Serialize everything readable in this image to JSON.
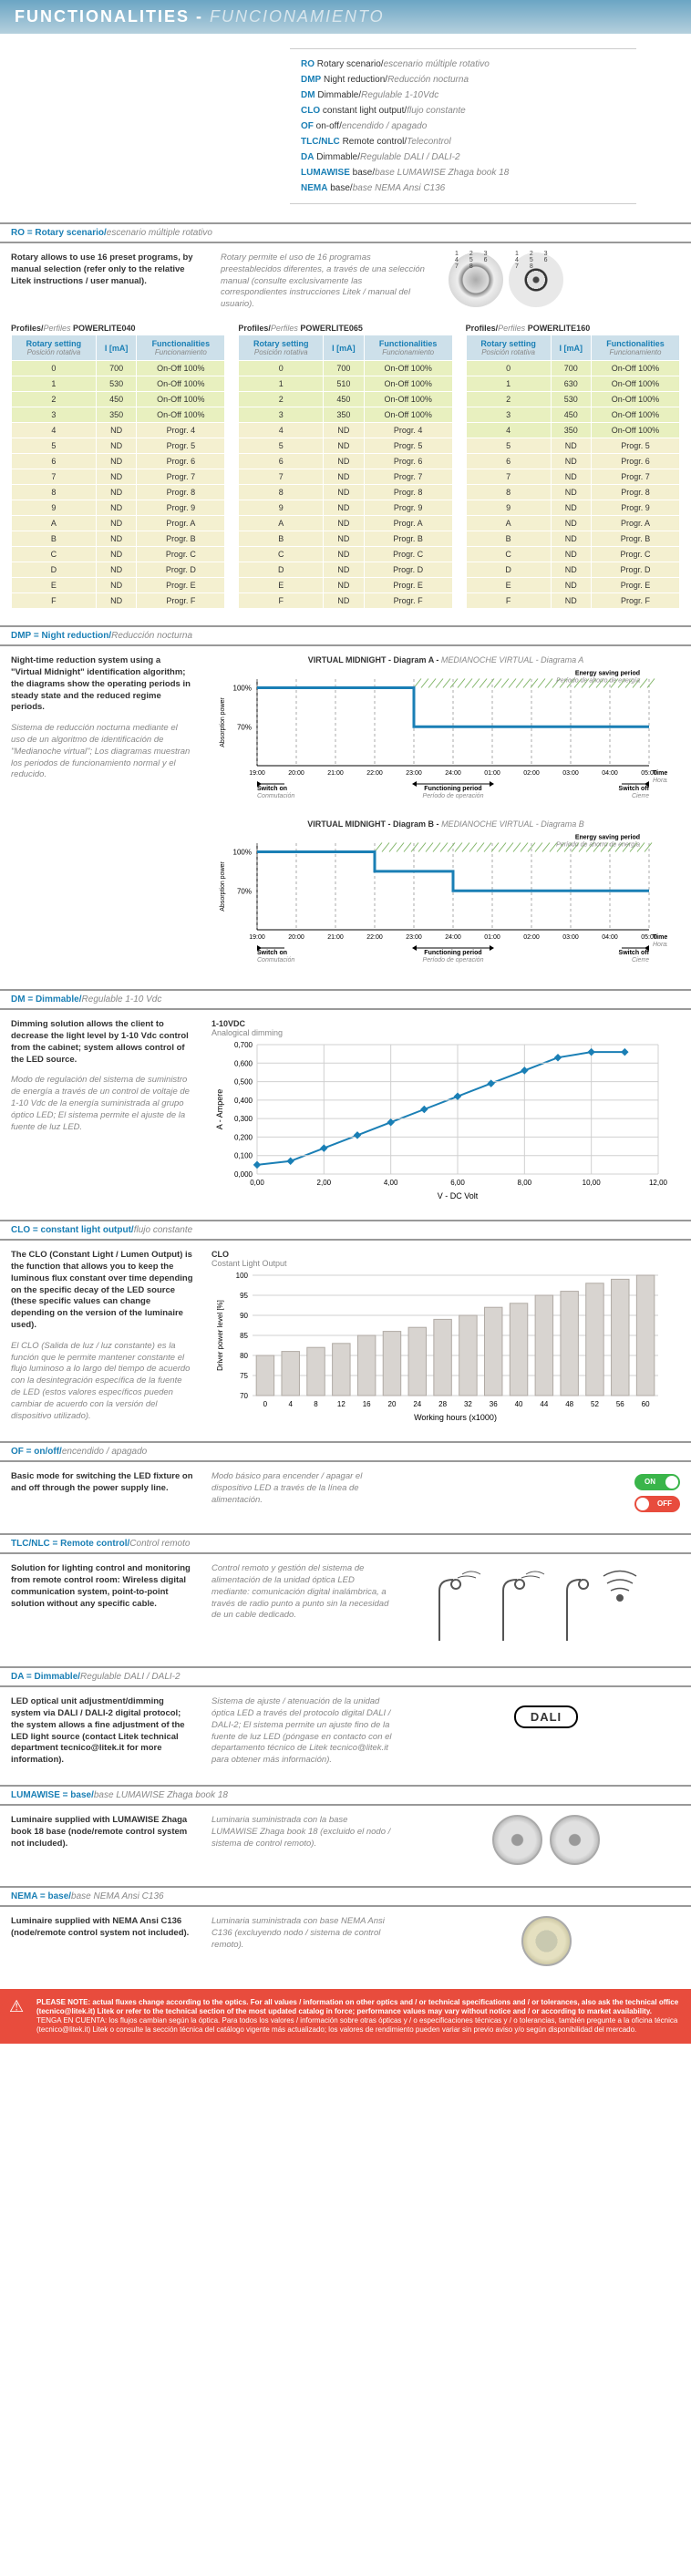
{
  "header": {
    "title": "FUNCTIONALITIES",
    "sep": " - ",
    "title_es": "FUNCIONAMIENTO",
    "bg_start": "#6ba5c4",
    "bg_end": "#b5d0dd"
  },
  "legend": [
    {
      "code": "RO",
      "en": "Rotary scenario/",
      "es": "escenario múltiple rotativo"
    },
    {
      "code": "DMP",
      "en": "Night reduction/",
      "es": "Reducción nocturna"
    },
    {
      "code": "DM",
      "en": "Dimmable/",
      "es": "Regulable 1-10Vdc"
    },
    {
      "code": "CLO",
      "en": "constant light output/",
      "es": "flujo constante"
    },
    {
      "code": "OF",
      "en": "on-off/",
      "es": "encendido / apagado"
    },
    {
      "code": "TLC/NLC",
      "en": "Remote control/",
      "es": "Telecontrol"
    },
    {
      "code": "DA",
      "en": "Dimmable/",
      "es": "Regulable DALI / DALI-2"
    },
    {
      "code": "LUMAWISE",
      "en": "base/",
      "es": "base LUMAWISE Zhaga book 18"
    },
    {
      "code": "NEMA",
      "en": "base/",
      "es": "base NEMA Ansi C136"
    }
  ],
  "accent": "#1a7fb5",
  "muted": "#888888",
  "row_on_bg": "#e8f0bf",
  "row_prog_bg": "#f4f0d0",
  "th_bg": "#cde0ea",
  "ro": {
    "head_en": "RO = Rotary scenario/",
    "head_es": "escenario múltiple rotativo",
    "intro_en": "Rotary allows to use 16 preset programs, by manual selection (refer only to the relative Litek instructions / user manual).",
    "intro_es": "Rotary permite el uso de 16 programas preestablecidos diferentes, a través de una selección manual (consulte exclusivamente las correspondientes instrucciones Litek / manual del usuario).",
    "col_hdr": {
      "rot_en": "Rotary setting",
      "rot_es": "Posición rotativa",
      "i": "I [mA]",
      "func_en": "Functionalities",
      "func_es": "Funcionamiento"
    },
    "profiles": [
      {
        "title_en": "Profiles/",
        "title_es": "Perfiles ",
        "name": "POWERLITE040",
        "rows": [
          {
            "r": "0",
            "i": "700",
            "f": "On-Off 100%",
            "on": true
          },
          {
            "r": "1",
            "i": "530",
            "f": "On-Off 100%",
            "on": true
          },
          {
            "r": "2",
            "i": "450",
            "f": "On-Off 100%",
            "on": true
          },
          {
            "r": "3",
            "i": "350",
            "f": "On-Off 100%",
            "on": true
          },
          {
            "r": "4",
            "i": "ND",
            "f": "Progr. 4"
          },
          {
            "r": "5",
            "i": "ND",
            "f": "Progr. 5"
          },
          {
            "r": "6",
            "i": "ND",
            "f": "Progr. 6"
          },
          {
            "r": "7",
            "i": "ND",
            "f": "Progr. 7"
          },
          {
            "r": "8",
            "i": "ND",
            "f": "Progr. 8"
          },
          {
            "r": "9",
            "i": "ND",
            "f": "Progr. 9"
          },
          {
            "r": "A",
            "i": "ND",
            "f": "Progr. A"
          },
          {
            "r": "B",
            "i": "ND",
            "f": "Progr. B"
          },
          {
            "r": "C",
            "i": "ND",
            "f": "Progr. C"
          },
          {
            "r": "D",
            "i": "ND",
            "f": "Progr. D"
          },
          {
            "r": "E",
            "i": "ND",
            "f": "Progr. E"
          },
          {
            "r": "F",
            "i": "ND",
            "f": "Progr. F"
          }
        ]
      },
      {
        "title_en": "Profiles/",
        "title_es": "Perfiles ",
        "name": "POWERLITE065",
        "rows": [
          {
            "r": "0",
            "i": "700",
            "f": "On-Off 100%",
            "on": true
          },
          {
            "r": "1",
            "i": "510",
            "f": "On-Off 100%",
            "on": true
          },
          {
            "r": "2",
            "i": "450",
            "f": "On-Off 100%",
            "on": true
          },
          {
            "r": "3",
            "i": "350",
            "f": "On-Off 100%",
            "on": true
          },
          {
            "r": "4",
            "i": "ND",
            "f": "Progr. 4"
          },
          {
            "r": "5",
            "i": "ND",
            "f": "Progr. 5"
          },
          {
            "r": "6",
            "i": "ND",
            "f": "Progr. 6"
          },
          {
            "r": "7",
            "i": "ND",
            "f": "Progr. 7"
          },
          {
            "r": "8",
            "i": "ND",
            "f": "Progr. 8"
          },
          {
            "r": "9",
            "i": "ND",
            "f": "Progr. 9"
          },
          {
            "r": "A",
            "i": "ND",
            "f": "Progr. A"
          },
          {
            "r": "B",
            "i": "ND",
            "f": "Progr. B"
          },
          {
            "r": "C",
            "i": "ND",
            "f": "Progr. C"
          },
          {
            "r": "D",
            "i": "ND",
            "f": "Progr. D"
          },
          {
            "r": "E",
            "i": "ND",
            "f": "Progr. E"
          },
          {
            "r": "F",
            "i": "ND",
            "f": "Progr. F"
          }
        ]
      },
      {
        "title_en": "Profiles/",
        "title_es": "Perfiles ",
        "name": "POWERLITE160",
        "rows": [
          {
            "r": "0",
            "i": "700",
            "f": "On-Off 100%",
            "on": true
          },
          {
            "r": "1",
            "i": "630",
            "f": "On-Off 100%",
            "on": true
          },
          {
            "r": "2",
            "i": "530",
            "f": "On-Off 100%",
            "on": true
          },
          {
            "r": "3",
            "i": "450",
            "f": "On-Off 100%",
            "on": true
          },
          {
            "r": "4",
            "i": "350",
            "f": "On-Off 100%",
            "on": true
          },
          {
            "r": "5",
            "i": "ND",
            "f": "Progr. 5"
          },
          {
            "r": "6",
            "i": "ND",
            "f": "Progr. 6"
          },
          {
            "r": "7",
            "i": "ND",
            "f": "Progr. 7"
          },
          {
            "r": "8",
            "i": "ND",
            "f": "Progr. 8"
          },
          {
            "r": "9",
            "i": "ND",
            "f": "Progr. 9"
          },
          {
            "r": "A",
            "i": "ND",
            "f": "Progr. A"
          },
          {
            "r": "B",
            "i": "ND",
            "f": "Progr. B"
          },
          {
            "r": "C",
            "i": "ND",
            "f": "Progr. C"
          },
          {
            "r": "D",
            "i": "ND",
            "f": "Progr. D"
          },
          {
            "r": "E",
            "i": "ND",
            "f": "Progr. E"
          },
          {
            "r": "F",
            "i": "ND",
            "f": "Progr. F"
          }
        ]
      }
    ]
  },
  "dmp": {
    "head_en": "DMP = Night reduction/",
    "head_es": "Reducción nocturna",
    "text_en": "Night-time reduction system using a \"Virtual Midnight\" identification algorithm; the diagrams show the operating periods in steady state and the reduced regime periods.",
    "text_es": "Sistema de reducción nocturna mediante el uso de un algoritmo de identificación de \"Medianoche virtual\"; Los diagramas muestran los periodos de funcionamiento normal y el reducido.",
    "diagA_title_en": "VIRTUAL MIDNIGHT - Diagram A - ",
    "diagA_title_es": "MEDIANOCHE VIRTUAL - Diagrama A",
    "diagB_title_en": "VIRTUAL MIDNIGHT - Diagram B - ",
    "diagB_title_es": "MEDIANOCHE VIRTUAL - Diagrama B",
    "y_label_en": "Absorption power",
    "y_label_es": "Potencia absorbida",
    "y_ticks": [
      "100%",
      "70%"
    ],
    "x_ticks": [
      "19:00",
      "20:00",
      "21:00",
      "22:00",
      "23:00",
      "24:00",
      "01:00",
      "02:00",
      "03:00",
      "04:00",
      "05:00"
    ],
    "x_label_time_en": "Time",
    "x_label_time_es": "Horas",
    "labels": {
      "switch_on_en": "Switch on",
      "switch_on_es": "Conmutación",
      "func_en": "Functioning period",
      "func_es": "Período de operación",
      "switch_off_en": "Switch off",
      "switch_off_es": "Cierre",
      "save_en": "Energy saving period",
      "save_es": "Período de ahorro de energía"
    },
    "diagA": {
      "step_at": "23:00",
      "pre_level": 100,
      "post_level": 70
    },
    "diagB": {
      "pre_level": 100,
      "step1_at": "22:00",
      "mid_level": 85,
      "step2_at": "24:00",
      "post_level": 70
    },
    "line_color": "#1a7fb5",
    "line_width": 3,
    "hatch_color": "#7fb566",
    "dash": "4,4"
  },
  "dm": {
    "head_en": "DM = Dimmable/",
    "head_es": "Regulable 1-10 Vdc",
    "text_en": "Dimming solution allows the client to decrease the light level by 1-10 Vdc control from the cabinet; system allows control of the LED source.",
    "text_es": "Modo de regulación del sistema de suministro de energía a través de un control de voltaje de 1-10 Vdc de la energía suministrada al grupo óptico LED; El sistema permite el ajuste de la fuente de luz LED.",
    "chart": {
      "title": "1-10VDC",
      "subtitle": "Analogical dimming",
      "xlabel": "V - DC Volt",
      "ylabel": "A - Ampere",
      "x_ticks": [
        "0,00",
        "2,00",
        "4,00",
        "6,00",
        "8,00",
        "10,00",
        "12,00"
      ],
      "y_ticks": [
        "0,000",
        "0,100",
        "0,200",
        "0,300",
        "0,400",
        "0,500",
        "0,600",
        "0,700"
      ],
      "points": [
        [
          0,
          0.05
        ],
        [
          1,
          0.07
        ],
        [
          2,
          0.14
        ],
        [
          3,
          0.21
        ],
        [
          4,
          0.28
        ],
        [
          5,
          0.35
        ],
        [
          6,
          0.42
        ],
        [
          7,
          0.49
        ],
        [
          8,
          0.56
        ],
        [
          9,
          0.63
        ],
        [
          10,
          0.66
        ],
        [
          11,
          0.66
        ]
      ],
      "xlim": [
        0,
        12
      ],
      "ylim": [
        0,
        0.7
      ],
      "line_color": "#1a7fb5",
      "line_width": 2,
      "marker": "diamond",
      "marker_size": 5,
      "grid_color": "#d0d0d0",
      "bg": "#ffffff"
    }
  },
  "clo": {
    "head_en": "CLO = constant light output/",
    "head_es": "flujo constante",
    "text_en": "The CLO (Constant Light / Lumen Output) is the function that allows you to keep the luminous flux constant over time depending on the specific decay of the LED source (these specific values can change depending on the version of the luminaire used).",
    "text_es": "El CLO (Salida de luz / luz constante) es la función que le permite mantener constante el flujo luminoso a lo largo del tiempo de acuerdo con la desintegración específica de la fuente de LED (estos valores específicos pueden cambiar de acuerdo con la versión del dispositivo utilizado).",
    "chart": {
      "title": "CLO",
      "subtitle": "Costant Light Output",
      "xlabel": "Working hours (x1000)",
      "ylabel": "Driver power level [%]",
      "x_ticks": [
        "0",
        "4",
        "8",
        "12",
        "16",
        "20",
        "24",
        "28",
        "32",
        "36",
        "40",
        "44",
        "48",
        "52",
        "56",
        "60"
      ],
      "y_ticks": [
        "70",
        "75",
        "80",
        "85",
        "90",
        "95",
        "100"
      ],
      "bars": [
        80,
        81,
        82,
        83,
        85,
        86,
        87,
        89,
        90,
        92,
        93,
        95,
        96,
        98,
        99,
        100
      ],
      "ylim": [
        70,
        100
      ],
      "bar_color": "#d8d4d0",
      "bar_border": "#b0aaa4",
      "grid_color": "#d0d0d0",
      "bg": "#ffffff"
    }
  },
  "of": {
    "head_en": "OF = on/off/",
    "head_es": "encendido / apagado",
    "text_en": "Basic mode for switching the LED fixture on and off through the power supply line.",
    "text_es": "Modo básico para encender / apagar el dispositivo LED a través de la línea de alimentación.",
    "on_label": "ON",
    "off_label": "OFF",
    "on_color": "#3ab54a",
    "off_color": "#e84c3d"
  },
  "tlc": {
    "head_en": "TLC/NLC = Remote control/",
    "head_es": "Control remoto",
    "text_en": "Solution for lighting control and monitoring from remote control room: Wireless digital communication system, point-to-point solution without any specific cable.",
    "text_es": "Control remoto y gestión del sistema de alimentación de la unidad óptica LED mediante: comunicación digital inalámbrica, a través de radio punto a punto sin la necesidad de un cable dedicado."
  },
  "da": {
    "head_en": "DA = Dimmable/",
    "head_es": "Regulable DALI / DALI-2",
    "text_en": "LED optical unit adjustment/dimming system via DALI / DALI-2 digital protocol; the system allows a fine adjustment of the LED light source (contact Litek technical department tecnico@litek.it for more information).",
    "text_es": "Sistema de ajuste / atenuación de la unidad óptica LED a través del protocolo digital DALI / DALI-2; El sistema permite un ajuste fino de la fuente de luz LED (póngase en contacto con el departamento técnico de Litek tecnico@litek.it para obtener más información).",
    "badge": "DALI"
  },
  "luma": {
    "head_en": "LUMAWISE = base/",
    "head_es": "base LUMAWISE Zhaga book 18",
    "text_en": "Luminaire supplied with LUMAWISE Zhaga book 18 base (node/remote control system not included).",
    "text_es": "Luminaria suministrada con la base LUMAWISE Zhaga book 18 (excluido el nodo / sistema de control remoto)."
  },
  "nema": {
    "head_en": "NEMA = base/",
    "head_es": "base NEMA Ansi C136",
    "text_en": "Luminaire supplied with NEMA Ansi C136 (node/remote control system not included).",
    "text_es": "Luminaria suministrada con base NEMA Ansi C136 (excluyendo nodo / sistema de control remoto)."
  },
  "note": {
    "en": "PLEASE NOTE: actual fluxes change according to the optics. For all values / information on other optics and / or technical specifications and / or tolerances, also ask the technical office (tecnico@litek.it) Litek or refer to the technical section of the most updated catalog in force; performance values may vary without notice and / or according to market availability.",
    "es": "TENGA EN CUENTA: los flujos cambian según la óptica. Para todos los valores / información sobre otras ópticas y / o especificaciones técnicas y / o tolerancias, también pregunte a la oficina técnica (tecnico@litek.it) Litek o consulte la sección técnica del catálogo vigente más actualizado; los valores de rendimiento pueden variar sin previo aviso y/o según disponibilidad del mercado."
  }
}
